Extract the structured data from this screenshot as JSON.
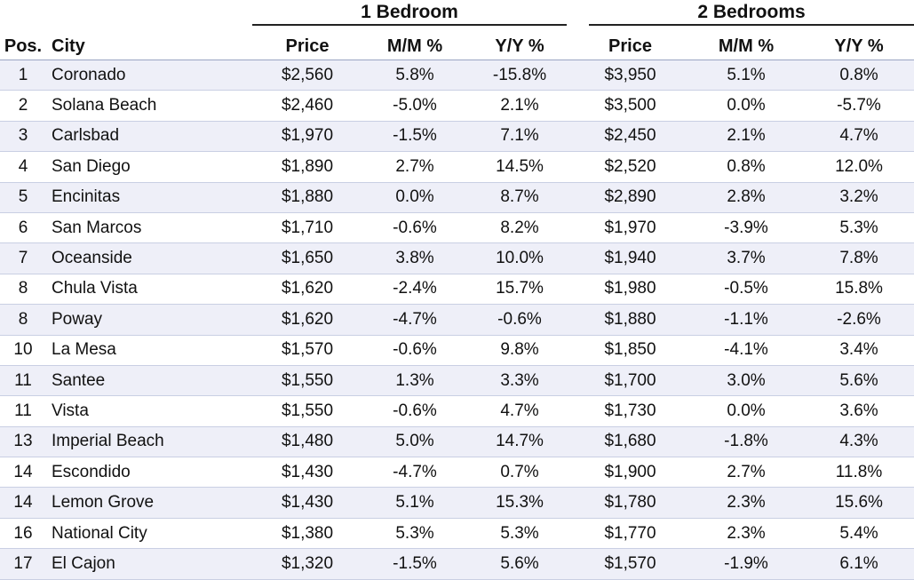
{
  "groups": {
    "one_bedroom": "1 Bedroom",
    "two_bedrooms": "2 Bedrooms"
  },
  "columns": {
    "pos": "Pos.",
    "city": "City",
    "price_1": "Price",
    "mm_1": "M/M %",
    "yy_1": "Y/Y %",
    "price_2": "Price",
    "mm_2": "M/M %",
    "yy_2": "Y/Y %"
  },
  "rows": [
    {
      "pos": "1",
      "city": "Coronado",
      "price_1": "$2,560",
      "mm_1": "5.8%",
      "yy_1": "-15.8%",
      "price_2": "$3,950",
      "mm_2": "5.1%",
      "yy_2": "0.8%"
    },
    {
      "pos": "2",
      "city": "Solana Beach",
      "price_1": "$2,460",
      "mm_1": "-5.0%",
      "yy_1": "2.1%",
      "price_2": "$3,500",
      "mm_2": "0.0%",
      "yy_2": "-5.7%"
    },
    {
      "pos": "3",
      "city": "Carlsbad",
      "price_1": "$1,970",
      "mm_1": "-1.5%",
      "yy_1": "7.1%",
      "price_2": "$2,450",
      "mm_2": "2.1%",
      "yy_2": "4.7%"
    },
    {
      "pos": "4",
      "city": "San Diego",
      "price_1": "$1,890",
      "mm_1": "2.7%",
      "yy_1": "14.5%",
      "price_2": "$2,520",
      "mm_2": "0.8%",
      "yy_2": "12.0%"
    },
    {
      "pos": "5",
      "city": "Encinitas",
      "price_1": "$1,880",
      "mm_1": "0.0%",
      "yy_1": "8.7%",
      "price_2": "$2,890",
      "mm_2": "2.8%",
      "yy_2": "3.2%"
    },
    {
      "pos": "6",
      "city": "San Marcos",
      "price_1": "$1,710",
      "mm_1": "-0.6%",
      "yy_1": "8.2%",
      "price_2": "$1,970",
      "mm_2": "-3.9%",
      "yy_2": "5.3%"
    },
    {
      "pos": "7",
      "city": "Oceanside",
      "price_1": "$1,650",
      "mm_1": "3.8%",
      "yy_1": "10.0%",
      "price_2": "$1,940",
      "mm_2": "3.7%",
      "yy_2": "7.8%"
    },
    {
      "pos": "8",
      "city": "Chula Vista",
      "price_1": "$1,620",
      "mm_1": "-2.4%",
      "yy_1": "15.7%",
      "price_2": "$1,980",
      "mm_2": "-0.5%",
      "yy_2": "15.8%"
    },
    {
      "pos": "8",
      "city": "Poway",
      "price_1": "$1,620",
      "mm_1": "-4.7%",
      "yy_1": "-0.6%",
      "price_2": "$1,880",
      "mm_2": "-1.1%",
      "yy_2": "-2.6%"
    },
    {
      "pos": "10",
      "city": "La Mesa",
      "price_1": "$1,570",
      "mm_1": "-0.6%",
      "yy_1": "9.8%",
      "price_2": "$1,850",
      "mm_2": "-4.1%",
      "yy_2": "3.4%"
    },
    {
      "pos": "11",
      "city": "Santee",
      "price_1": "$1,550",
      "mm_1": "1.3%",
      "yy_1": "3.3%",
      "price_2": "$1,700",
      "mm_2": "3.0%",
      "yy_2": "5.6%"
    },
    {
      "pos": "11",
      "city": "Vista",
      "price_1": "$1,550",
      "mm_1": "-0.6%",
      "yy_1": "4.7%",
      "price_2": "$1,730",
      "mm_2": "0.0%",
      "yy_2": "3.6%"
    },
    {
      "pos": "13",
      "city": "Imperial Beach",
      "price_1": "$1,480",
      "mm_1": "5.0%",
      "yy_1": "14.7%",
      "price_2": "$1,680",
      "mm_2": "-1.8%",
      "yy_2": "4.3%"
    },
    {
      "pos": "14",
      "city": "Escondido",
      "price_1": "$1,430",
      "mm_1": "-4.7%",
      "yy_1": "0.7%",
      "price_2": "$1,900",
      "mm_2": "2.7%",
      "yy_2": "11.8%"
    },
    {
      "pos": "14",
      "city": "Lemon Grove",
      "price_1": "$1,430",
      "mm_1": "5.1%",
      "yy_1": "15.3%",
      "price_2": "$1,780",
      "mm_2": "2.3%",
      "yy_2": "15.6%"
    },
    {
      "pos": "16",
      "city": "National City",
      "price_1": "$1,380",
      "mm_1": "5.3%",
      "yy_1": "5.3%",
      "price_2": "$1,770",
      "mm_2": "2.3%",
      "yy_2": "5.4%"
    },
    {
      "pos": "17",
      "city": "El Cajon",
      "price_1": "$1,320",
      "mm_1": "-1.5%",
      "yy_1": "5.6%",
      "price_2": "$1,570",
      "mm_2": "-1.9%",
      "yy_2": "6.1%"
    }
  ]
}
